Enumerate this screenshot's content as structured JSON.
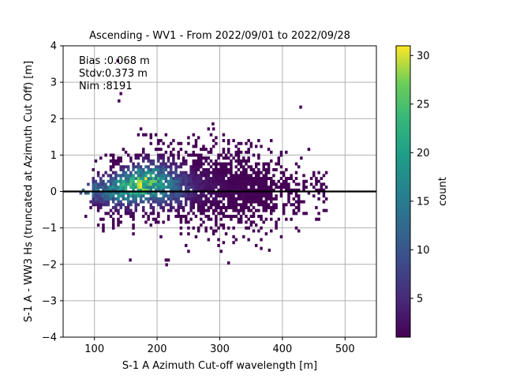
{
  "chart_data": {
    "type": "heatmap",
    "title": "Ascending - WV1 - From 2022/09/01 to 2022/09/28",
    "xlabel": "S-1 A Azimuth Cut-off wavelength [m]",
    "ylabel": "S-1 A - WW3 Hs (truncated at Azimuth Cut Off) [m]",
    "xlim": [
      50,
      550
    ],
    "ylim": [
      -4,
      4
    ],
    "xticks": [
      100,
      200,
      300,
      400,
      500
    ],
    "yticks": [
      -4,
      -3,
      -2,
      -1,
      0,
      1,
      2,
      3,
      4
    ],
    "grid": true,
    "reference_line_y": 0,
    "stats": [
      {
        "label": "Bias",
        "value": "0.068 m",
        "text": "Bias :0.068 m"
      },
      {
        "label": "Stdv",
        "value": "0.373 m",
        "text": "Stdv:0.373 m"
      },
      {
        "label": "Nim",
        "value": "8191",
        "text": "Nim :8191"
      }
    ],
    "colorbar": {
      "label": "count",
      "min": 1,
      "max": 31,
      "ticks": [
        5,
        10,
        15,
        20,
        25,
        30
      ],
      "colormap": "viridis"
    },
    "density_cloud": {
      "description_core": [
        {
          "x": 115,
          "y": 0.0,
          "count": 14
        },
        {
          "x": 130,
          "y": 0.0,
          "count": 18
        },
        {
          "x": 140,
          "y": 0.05,
          "count": 22
        },
        {
          "x": 150,
          "y": 0.1,
          "count": 24
        },
        {
          "x": 160,
          "y": 0.1,
          "count": 26
        },
        {
          "x": 170,
          "y": 0.15,
          "count": 28
        },
        {
          "x": 180,
          "y": 0.2,
          "count": 27
        },
        {
          "x": 190,
          "y": 0.2,
          "count": 24
        },
        {
          "x": 200,
          "y": 0.2,
          "count": 22
        },
        {
          "x": 210,
          "y": 0.2,
          "count": 18
        },
        {
          "x": 220,
          "y": 0.15,
          "count": 14
        },
        {
          "x": 240,
          "y": 0.1,
          "count": 8
        },
        {
          "x": 260,
          "y": 0.1,
          "count": 4
        },
        {
          "x": 280,
          "y": 0.1,
          "count": 3
        },
        {
          "x": 300,
          "y": 0.05,
          "count": 2
        },
        {
          "x": 330,
          "y": 0.0,
          "count": 1.5
        },
        {
          "x": 360,
          "y": 0.0,
          "count": 1.2
        }
      ]
    },
    "outliers": [
      {
        "x": 135,
        "y": 3.55,
        "count": 1
      },
      {
        "x": 137,
        "y": 2.45,
        "count": 1
      },
      {
        "x": 140,
        "y": 2.65,
        "count": 1
      },
      {
        "x": 427,
        "y": 2.28,
        "count": 1
      },
      {
        "x": 287,
        "y": 1.82,
        "count": 1
      },
      {
        "x": 213,
        "y": -2.05,
        "count": 1
      },
      {
        "x": 155,
        "y": -1.92,
        "count": 1
      },
      {
        "x": 377,
        "y": -1.65,
        "count": 1
      }
    ],
    "colors": {
      "line": "#000000",
      "grid": "#b0b0b0"
    }
  }
}
